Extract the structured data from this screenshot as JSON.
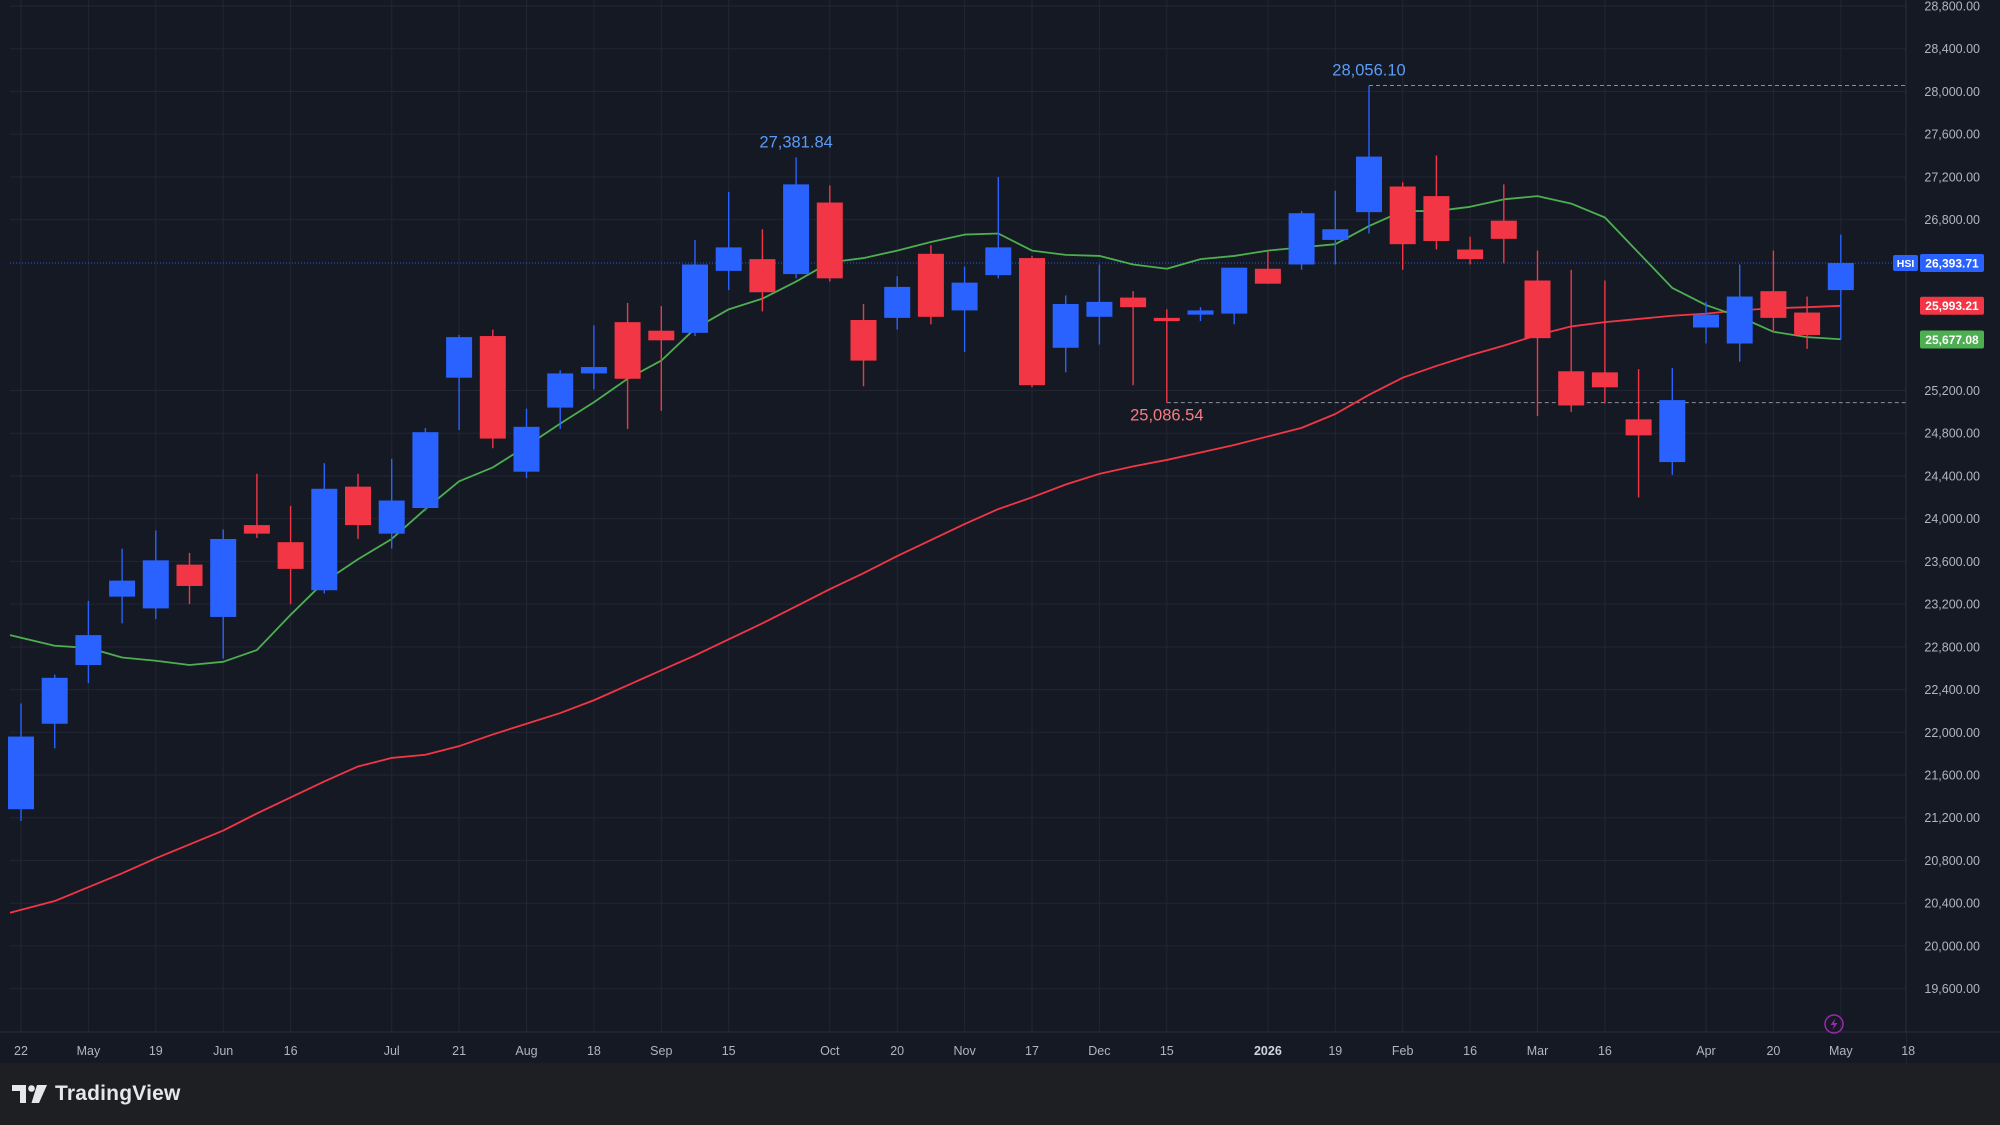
{
  "branding": {
    "name": "TradingView"
  },
  "chart_data": {
    "type": "candlestick",
    "symbol": "HSI",
    "interval": "weekly",
    "colors": {
      "up": "#2962ff",
      "down": "#f23645",
      "ma_fast": "#4caf50",
      "ma_slow": "#f23645",
      "background": "#151924",
      "grid": "#222633",
      "axis_text": "#b2b5be",
      "high_label": "#5b9cf6",
      "low_label": "#f77c80"
    },
    "ylim": [
      19400,
      28800
    ],
    "y_ticks": [
      {
        "value": 19600,
        "label": "19,600.00"
      },
      {
        "value": 20000,
        "label": "20,000.00"
      },
      {
        "value": 20400,
        "label": "20,400.00"
      },
      {
        "value": 20800,
        "label": "20,800.00"
      },
      {
        "value": 21200,
        "label": "21,200.00"
      },
      {
        "value": 21600,
        "label": "21,600.00"
      },
      {
        "value": 22000,
        "label": "22,000.00"
      },
      {
        "value": 22400,
        "label": "22,400.00"
      },
      {
        "value": 22800,
        "label": "22,800.00"
      },
      {
        "value": 23200,
        "label": "23,200.00"
      },
      {
        "value": 23600,
        "label": "23,600.00"
      },
      {
        "value": 24000,
        "label": "24,000.00"
      },
      {
        "value": 24400,
        "label": "24,400.00"
      },
      {
        "value": 24800,
        "label": "24,800.00"
      },
      {
        "value": 25200,
        "label": "25,200.00"
      },
      {
        "value": 26800,
        "label": "26,800.00"
      },
      {
        "value": 27200,
        "label": "27,200.00"
      },
      {
        "value": 27600,
        "label": "27,600.00"
      },
      {
        "value": 28000,
        "label": "28,000.00"
      },
      {
        "value": 28400,
        "label": "28,400.00"
      },
      {
        "value": 28800,
        "label": "28,800.00"
      }
    ],
    "x_ticks": [
      {
        "index": 0,
        "label": "22",
        "bold": false
      },
      {
        "index": 2,
        "label": "May",
        "bold": false
      },
      {
        "index": 4,
        "label": "19",
        "bold": false
      },
      {
        "index": 6,
        "label": "Jun",
        "bold": false
      },
      {
        "index": 8,
        "label": "16",
        "bold": false
      },
      {
        "index": 11,
        "label": "Jul",
        "bold": false
      },
      {
        "index": 13,
        "label": "21",
        "bold": false
      },
      {
        "index": 15,
        "label": "Aug",
        "bold": false
      },
      {
        "index": 17,
        "label": "18",
        "bold": false
      },
      {
        "index": 19,
        "label": "Sep",
        "bold": false
      },
      {
        "index": 21,
        "label": "15",
        "bold": false
      },
      {
        "index": 24,
        "label": "Oct",
        "bold": false
      },
      {
        "index": 26,
        "label": "20",
        "bold": false
      },
      {
        "index": 28,
        "label": "Nov",
        "bold": false
      },
      {
        "index": 30,
        "label": "17",
        "bold": false
      },
      {
        "index": 32,
        "label": "Dec",
        "bold": false
      },
      {
        "index": 34,
        "label": "15",
        "bold": false
      },
      {
        "index": 37,
        "label": "2026",
        "bold": true
      },
      {
        "index": 39,
        "label": "19",
        "bold": false
      },
      {
        "index": 41,
        "label": "Feb",
        "bold": false
      },
      {
        "index": 43,
        "label": "16",
        "bold": false
      },
      {
        "index": 45,
        "label": "Mar",
        "bold": false
      },
      {
        "index": 47,
        "label": "16",
        "bold": false
      },
      {
        "index": 50,
        "label": "Apr",
        "bold": false
      },
      {
        "index": 52,
        "label": "20",
        "bold": false
      },
      {
        "index": 54,
        "label": "May",
        "bold": false
      },
      {
        "index": 56,
        "label": "18",
        "bold": false
      }
    ],
    "candles": [
      {
        "o": 21280,
        "h": 22270,
        "l": 21170,
        "c": 21960
      },
      {
        "o": 22080,
        "h": 22540,
        "l": 21850,
        "c": 22510
      },
      {
        "o": 22630,
        "h": 23230,
        "l": 22460,
        "c": 22910
      },
      {
        "o": 23270,
        "h": 23720,
        "l": 23020,
        "c": 23420
      },
      {
        "o": 23160,
        "h": 23890,
        "l": 23060,
        "c": 23610
      },
      {
        "o": 23570,
        "h": 23680,
        "l": 23200,
        "c": 23370
      },
      {
        "o": 23080,
        "h": 23900,
        "l": 22690,
        "c": 23810
      },
      {
        "o": 23940,
        "h": 24420,
        "l": 23820,
        "c": 23860
      },
      {
        "o": 23780,
        "h": 24120,
        "l": 23200,
        "c": 23530
      },
      {
        "o": 23330,
        "h": 24520,
        "l": 23300,
        "c": 24280
      },
      {
        "o": 24300,
        "h": 24420,
        "l": 23810,
        "c": 23940
      },
      {
        "o": 23860,
        "h": 24560,
        "l": 23720,
        "c": 24170
      },
      {
        "o": 24100,
        "h": 24850,
        "l": 24070,
        "c": 24810
      },
      {
        "o": 25320,
        "h": 25720,
        "l": 24830,
        "c": 25700
      },
      {
        "o": 25710,
        "h": 25770,
        "l": 24660,
        "c": 24750
      },
      {
        "o": 24440,
        "h": 25030,
        "l": 24380,
        "c": 24860
      },
      {
        "o": 25040,
        "h": 25390,
        "l": 24840,
        "c": 25360
      },
      {
        "o": 25360,
        "h": 25810,
        "l": 25210,
        "c": 25420
      },
      {
        "o": 25840,
        "h": 26020,
        "l": 24840,
        "c": 25310
      },
      {
        "o": 25760,
        "h": 25990,
        "l": 25010,
        "c": 25670
      },
      {
        "o": 25740,
        "h": 26610,
        "l": 25710,
        "c": 26380
      },
      {
        "o": 26320,
        "h": 27060,
        "l": 26140,
        "c": 26540
      },
      {
        "o": 26430,
        "h": 26710,
        "l": 25940,
        "c": 26120
      },
      {
        "o": 26290,
        "h": 27381.84,
        "l": 26250,
        "c": 27130
      },
      {
        "o": 26960,
        "h": 27120,
        "l": 26220,
        "c": 26250
      },
      {
        "o": 25860,
        "h": 26010,
        "l": 25240,
        "c": 25480
      },
      {
        "o": 25880,
        "h": 26270,
        "l": 25770,
        "c": 26170
      },
      {
        "o": 26480,
        "h": 26560,
        "l": 25820,
        "c": 25890
      },
      {
        "o": 25950,
        "h": 26360,
        "l": 25560,
        "c": 26210
      },
      {
        "o": 26280,
        "h": 27200,
        "l": 26250,
        "c": 26540
      },
      {
        "o": 26440,
        "h": 26460,
        "l": 25230,
        "c": 25250
      },
      {
        "o": 25600,
        "h": 26090,
        "l": 25370,
        "c": 26010
      },
      {
        "o": 25890,
        "h": 26380,
        "l": 25630,
        "c": 26030
      },
      {
        "o": 26070,
        "h": 26130,
        "l": 25250,
        "c": 25980
      },
      {
        "o": 25880,
        "h": 25960,
        "l": 25086.54,
        "c": 25850
      },
      {
        "o": 25910,
        "h": 25980,
        "l": 25850,
        "c": 25950
      },
      {
        "o": 25920,
        "h": 26350,
        "l": 25820,
        "c": 26350
      },
      {
        "o": 26340,
        "h": 26510,
        "l": 26200,
        "c": 26200
      },
      {
        "o": 26380,
        "h": 26880,
        "l": 26330,
        "c": 26860
      },
      {
        "o": 26610,
        "h": 27070,
        "l": 26380,
        "c": 26710
      },
      {
        "o": 26870,
        "h": 28056.1,
        "l": 26670,
        "c": 27390
      },
      {
        "o": 27110,
        "h": 27150,
        "l": 26330,
        "c": 26570
      },
      {
        "o": 27020,
        "h": 27400,
        "l": 26520,
        "c": 26600
      },
      {
        "o": 26520,
        "h": 26640,
        "l": 26380,
        "c": 26430
      },
      {
        "o": 26790,
        "h": 27130,
        "l": 26390,
        "c": 26620
      },
      {
        "o": 26230,
        "h": 26510,
        "l": 24960,
        "c": 25690
      },
      {
        "o": 25380,
        "h": 26330,
        "l": 25000,
        "c": 25060
      },
      {
        "o": 25370,
        "h": 26230,
        "l": 25080,
        "c": 25230
      },
      {
        "o": 24930,
        "h": 25400,
        "l": 24200,
        "c": 24780
      },
      {
        "o": 24530,
        "h": 25410,
        "l": 24410,
        "c": 25110
      },
      {
        "o": 25790,
        "h": 26030,
        "l": 25640,
        "c": 25910
      },
      {
        "o": 25640,
        "h": 26380,
        "l": 25470,
        "c": 26080
      },
      {
        "o": 26130,
        "h": 26510,
        "l": 25740,
        "c": 25880
      },
      {
        "o": 25930,
        "h": 26080,
        "l": 25590,
        "c": 25720
      },
      {
        "o": 26140,
        "h": 26660,
        "l": 25680,
        "c": 26393.71
      }
    ],
    "ma_fast": [
      22910,
      22810,
      22790,
      22700,
      22670,
      22630,
      22660,
      22770,
      23100,
      23410,
      23620,
      23810,
      24090,
      24350,
      24480,
      24680,
      24890,
      25090,
      25310,
      25480,
      25780,
      25960,
      26060,
      26220,
      26400,
      26440,
      26510,
      26590,
      26660,
      26670,
      26510,
      26470,
      26460,
      26380,
      26340,
      26430,
      26460,
      26510,
      26540,
      26570,
      26740,
      26880,
      26880,
      26920,
      26990,
      27020,
      26950,
      26820,
      26490,
      26160,
      26000,
      25890,
      25750,
      25700,
      25680
    ],
    "ma_slow": [
      20310,
      20420,
      20550,
      20680,
      20820,
      20950,
      21080,
      21240,
      21390,
      21540,
      21680,
      21760,
      21790,
      21870,
      21980,
      22080,
      22180,
      22300,
      22440,
      22580,
      22720,
      22870,
      23020,
      23180,
      23340,
      23490,
      23650,
      23800,
      23950,
      24090,
      24200,
      24320,
      24420,
      24490,
      24550,
      24620,
      24690,
      24770,
      24850,
      24980,
      25160,
      25320,
      25430,
      25530,
      25620,
      25720,
      25800,
      25840,
      25870,
      25900,
      25920,
      25950,
      25970,
      25980,
      25993.21
    ],
    "annotations": {
      "high_1": {
        "index": 23,
        "value": 27381.84,
        "label": "27,381.84"
      },
      "high_2": {
        "index": 40,
        "value": 28056.1,
        "label": "28,056.10"
      },
      "low_1": {
        "index": 34,
        "value": 25086.54,
        "label": "25,086.54"
      }
    },
    "price_tags": {
      "last": {
        "symbol": "HSI",
        "value": 26393.71,
        "label": "26,393.71"
      },
      "ma_slow": {
        "value": 25993.21,
        "label": "25,993.21"
      },
      "ma_fast": {
        "value": 25677.08,
        "label": "25,677.08"
      }
    },
    "grid": true
  }
}
